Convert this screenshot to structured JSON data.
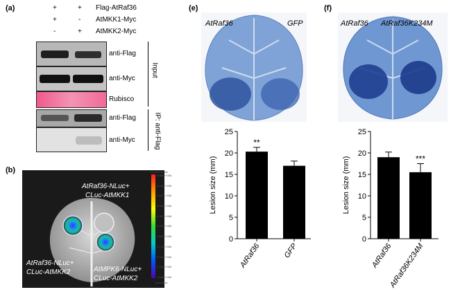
{
  "panels": {
    "a": {
      "letter": "(a)",
      "rows": [
        {
          "signs": [
            "+",
            "+"
          ],
          "label": "Flag-AtRaf36"
        },
        {
          "signs": [
            "+",
            "-"
          ],
          "label": "AtMKK1-Myc"
        },
        {
          "signs": [
            "-",
            "+"
          ],
          "label": "AtMKK2-Myc"
        }
      ],
      "blot_labels": [
        "anti-Flag",
        "anti-Myc",
        "Rubisco",
        "anti-Flag",
        "anti-Myc"
      ],
      "group_input": "Input",
      "group_ip": "IP: anti-Flag"
    },
    "b": {
      "letter": "(b)",
      "legend_title": "Luminescence",
      "legend_ticks": [
        "8.864e+006",
        "8.141e+006",
        "7.417e+006",
        "6.694e+006",
        "5.957e+006",
        "5.227e+006",
        "4.501e+006",
        "3.773e+006",
        "3.044e+006",
        "2.316e+006",
        "1.588e+006"
      ],
      "legend_unit": "p/s/cm²/sr",
      "labels": [
        {
          "line1": "AtRaf36-NLuc+",
          "line2": "CLuc-AtMKK1"
        },
        {
          "line1": "AtRaf36-NLuc+",
          "line2": "CLuc-AtMKK2"
        },
        {
          "line1": "AtMPK6-NLuc+",
          "line2": "CLuc-AtMKK2"
        }
      ]
    },
    "e": {
      "letter": "(e)",
      "photo_left": "AtRaf36",
      "photo_right": "GFP"
    },
    "f": {
      "letter": "(f)",
      "photo_left": "AtRaf36",
      "photo_right": "AtRaf36K234M"
    }
  },
  "chart_data": [
    {
      "type": "bar",
      "panel": "e",
      "categories": [
        "AtRaf36",
        "GFP"
      ],
      "values": [
        20.3,
        17.0
      ],
      "errors": [
        1.0,
        1.1
      ],
      "significance": [
        "**",
        ""
      ],
      "ylabel": "Lesion size (mm)",
      "ylim": [
        0,
        25
      ],
      "yticks": [
        0,
        5,
        10,
        15,
        20,
        25
      ],
      "bar_color": "#000000"
    },
    {
      "type": "bar",
      "panel": "f",
      "categories": [
        "AtRaf36",
        "AtRaf36K234M"
      ],
      "values": [
        19.0,
        15.5
      ],
      "errors": [
        1.2,
        2.0
      ],
      "significance": [
        "",
        "***"
      ],
      "ylabel": "Lesion size (mm)",
      "ylim": [
        0,
        25
      ],
      "yticks": [
        0,
        5,
        10,
        15,
        20,
        25
      ],
      "bar_color": "#000000"
    }
  ]
}
